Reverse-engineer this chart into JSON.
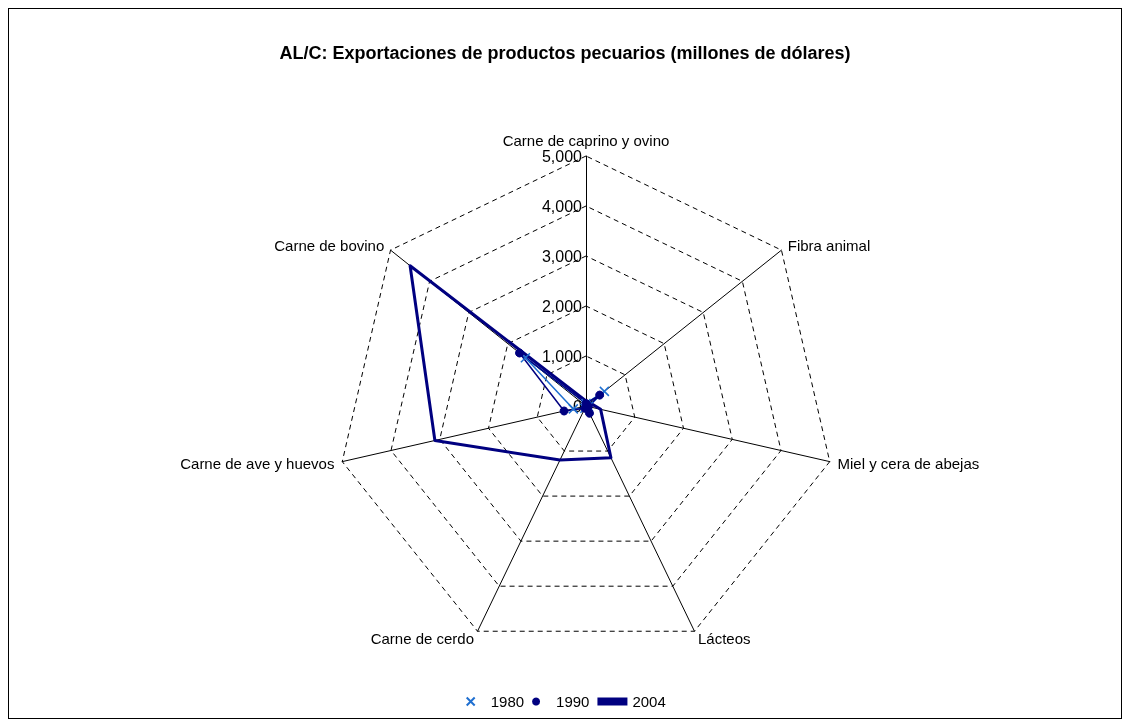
{
  "chart_data": {
    "type": "radar",
    "title": "AL/C: Exportaciones de productos pecuarios (millones de dólares)",
    "categories": [
      "Carne de caprino y ovino",
      "Fibra animal",
      "Miel y cera de abejas",
      "Lácteos",
      "Carne de cerdo",
      "Carne de ave y huevos",
      "Carne de bovino"
    ],
    "series": [
      {
        "name": "1980",
        "color": "#1f6fd0",
        "marker": "cross",
        "values": [
          50,
          470,
          50,
          null,
          50,
          260,
          1550
        ]
      },
      {
        "name": "1990",
        "color": "#000080",
        "marker": "circle",
        "values": [
          50,
          350,
          50,
          160,
          50,
          450,
          1700
        ]
      },
      {
        "name": "2004",
        "color": "#000080",
        "marker": "none",
        "values": [
          100,
          100,
          300,
          1150,
          1200,
          3100,
          4500
        ]
      }
    ],
    "ylim": [
      0,
      5000
    ],
    "yticks": [
      0,
      {
        "value": 1000,
        "label": "1,000"
      },
      {
        "value": 2000,
        "label": "2,000"
      },
      {
        "value": 3000,
        "label": "3,000"
      },
      {
        "value": 4000,
        "label": "4,000"
      },
      {
        "value": 5000,
        "label": "5,000"
      }
    ],
    "grid": true,
    "legend": "bottom"
  }
}
